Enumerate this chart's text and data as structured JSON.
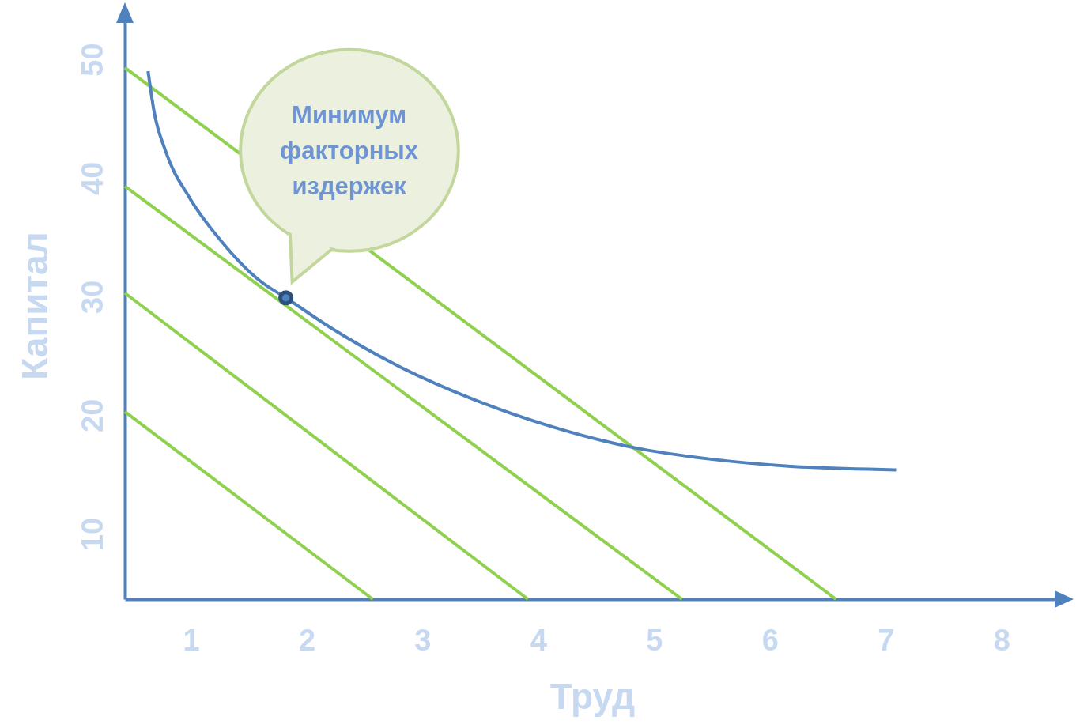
{
  "chart_data": {
    "type": "line",
    "xlabel": "Труд",
    "ylabel": "Капитал",
    "xlim": [
      0.43,
      8.5
    ],
    "ylim": [
      4.5,
      54
    ],
    "xticks": [
      1,
      2,
      3,
      4,
      5,
      6,
      7,
      8
    ],
    "yticks": [
      10,
      20,
      30,
      40,
      50
    ],
    "series": [
      {
        "color": "#8fd14f",
        "x": [
          0.43,
          2.57
        ],
        "values": [
          20.3,
          4.5
        ]
      },
      {
        "color": "#8fd14f",
        "x": [
          0.43,
          3.91
        ],
        "values": [
          30.3,
          4.5
        ]
      },
      {
        "color": "#8fd14f",
        "x": [
          0.43,
          5.24
        ],
        "values": [
          39.3,
          4.5
        ]
      },
      {
        "color": "#8fd14f",
        "x": [
          0.43,
          6.57
        ],
        "values": [
          49.3,
          4.5
        ]
      },
      {
        "color": "#4f81bd",
        "x": [
          0.63,
          0.68,
          0.78,
          0.99,
          1.26,
          1.6,
          1.82,
          2.22,
          2.76,
          3.45,
          4.13,
          4.81,
          5.49,
          6.18,
          7.09
        ],
        "values": [
          49.0,
          45.7,
          42.3,
          38.3,
          34.7,
          31.3,
          29.9,
          27.3,
          24.3,
          21.3,
          19.0,
          17.3,
          16.3,
          15.7,
          15.4
        ]
      },
      {
        "type": "scatter",
        "color": "#2c4f7c",
        "x": [
          1.82
        ],
        "values": [
          29.9
        ]
      }
    ],
    "annotations": [
      "Минимум факторных издержек"
    ]
  }
}
